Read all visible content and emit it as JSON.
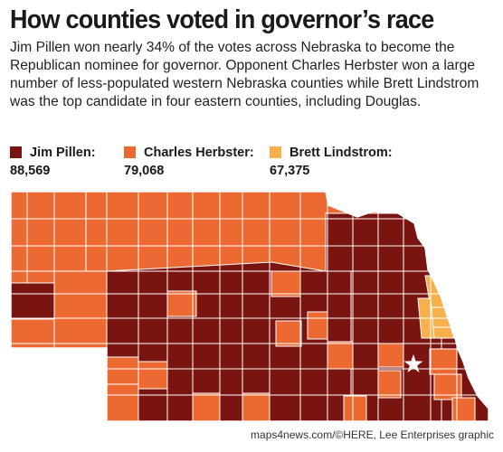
{
  "title": "How counties voted in governor’s race",
  "description": "Jim Pillen won nearly 34% of the votes across Nebraska to become the Republican nominee for governor. Opponent Charles Herbster won a large number of less-populated western Nebraska counties while Brett Lindstrom was the top candidate in four eastern counties, including Douglas.",
  "legend": [
    {
      "name": "Jim Pillen:",
      "votes": "88,569",
      "color": "#7a1411"
    },
    {
      "name": "Charles Herbster:",
      "votes": "79,068",
      "color": "#ec6a32"
    },
    {
      "name": "Brett Lindstrom:",
      "votes": "67,375",
      "color": "#f7b04c"
    }
  ],
  "map": {
    "state": "Nebraska",
    "marker_icon": "star-icon",
    "border_color": "#ffffff"
  },
  "credit": "maps4news.com/©HERE, Lee Enterprises graphic"
}
